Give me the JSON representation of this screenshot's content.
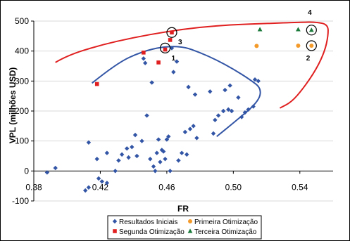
{
  "chart_data": {
    "type": "scatter",
    "xlabel": "FR",
    "ylabel": "VPL (milhões USD)",
    "xlim": [
      0.38,
      0.56
    ],
    "ylim": [
      -100,
      500
    ],
    "xticks": [
      "0.38",
      "0.42",
      "0.46",
      "0.50",
      "0.54"
    ],
    "yticks": [
      "-100",
      "0",
      "100",
      "200",
      "300",
      "400",
      "500"
    ],
    "xtick_values": [
      0.38,
      0.42,
      0.46,
      0.5,
      0.54
    ],
    "ytick_values": [
      -100,
      0,
      100,
      200,
      300,
      400,
      500
    ],
    "grid": true,
    "legend_position": "bottom",
    "series": [
      {
        "name": "Resultados Iniciais",
        "marker": "diamond",
        "color": "#3355a5",
        "points": [
          [
            0.388,
            -5
          ],
          [
            0.393,
            10
          ],
          [
            0.411,
            -65
          ],
          [
            0.413,
            -55
          ],
          [
            0.413,
            95
          ],
          [
            0.418,
            40
          ],
          [
            0.419,
            -25
          ],
          [
            0.421,
            -35
          ],
          [
            0.424,
            -40
          ],
          [
            0.424,
            60
          ],
          [
            0.429,
            0
          ],
          [
            0.431,
            35
          ],
          [
            0.433,
            55
          ],
          [
            0.436,
            75
          ],
          [
            0.437,
            45
          ],
          [
            0.439,
            80
          ],
          [
            0.441,
            120
          ],
          [
            0.442,
            50
          ],
          [
            0.445,
            100
          ],
          [
            0.446,
            375
          ],
          [
            0.447,
            360
          ],
          [
            0.448,
            185
          ],
          [
            0.45,
            40
          ],
          [
            0.451,
            295
          ],
          [
            0.452,
            15
          ],
          [
            0.453,
            0
          ],
          [
            0.454,
            60
          ],
          [
            0.455,
            105
          ],
          [
            0.456,
            30
          ],
          [
            0.457,
            70
          ],
          [
            0.458,
            65
          ],
          [
            0.459,
            40
          ],
          [
            0.46,
            105
          ],
          [
            0.461,
            115
          ],
          [
            0.462,
            0
          ],
          [
            0.463,
            410
          ],
          [
            0.464,
            330
          ],
          [
            0.466,
            365
          ],
          [
            0.467,
            35
          ],
          [
            0.469,
            60
          ],
          [
            0.471,
            130
          ],
          [
            0.472,
            55
          ],
          [
            0.473,
            280
          ],
          [
            0.474,
            140
          ],
          [
            0.476,
            150
          ],
          [
            0.477,
            255
          ],
          [
            0.478,
            110
          ],
          [
            0.486,
            265
          ],
          [
            0.488,
            125
          ],
          [
            0.489,
            170
          ],
          [
            0.491,
            185
          ],
          [
            0.494,
            200
          ],
          [
            0.495,
            270
          ],
          [
            0.497,
            205
          ],
          [
            0.498,
            285
          ],
          [
            0.499,
            200
          ],
          [
            0.503,
            245
          ],
          [
            0.505,
            180
          ],
          [
            0.507,
            195
          ],
          [
            0.509,
            205
          ],
          [
            0.512,
            215
          ],
          [
            0.513,
            305
          ],
          [
            0.515,
            300
          ]
        ]
      },
      {
        "name": "Primeira Otimização",
        "marker": "circle",
        "color": "#f39a2b",
        "points": [
          [
            0.514,
            417
          ],
          [
            0.539,
            418
          ],
          [
            0.547,
            418
          ]
        ]
      },
      {
        "name": "Segunda Otimização",
        "marker": "square",
        "color": "#e02020",
        "points": [
          [
            0.418,
            290
          ],
          [
            0.446,
            395
          ],
          [
            0.455,
            362
          ],
          [
            0.459,
            405
          ],
          [
            0.462,
            437
          ],
          [
            0.463,
            462
          ]
        ]
      },
      {
        "name": "Terceira Otimização",
        "marker": "triangle",
        "color": "#1a7a3a",
        "points": [
          [
            0.516,
            472
          ],
          [
            0.539,
            472
          ],
          [
            0.547,
            470
          ]
        ]
      }
    ],
    "curves": [
      {
        "color": "#3355a5",
        "points": [
          [
            0.415,
            293
          ],
          [
            0.43,
            360
          ],
          [
            0.445,
            398
          ],
          [
            0.458,
            415
          ],
          [
            0.47,
            415
          ],
          [
            0.48,
            395
          ],
          [
            0.49,
            370
          ],
          [
            0.5,
            340
          ],
          [
            0.51,
            305
          ],
          [
            0.517,
            275
          ],
          [
            0.515,
            230
          ],
          [
            0.5,
            160
          ],
          [
            0.49,
            115
          ]
        ]
      },
      {
        "color": "#e02020",
        "points": [
          [
            0.393,
            362
          ],
          [
            0.4,
            385
          ],
          [
            0.42,
            420
          ],
          [
            0.44,
            445
          ],
          [
            0.46,
            465
          ],
          [
            0.48,
            480
          ],
          [
            0.5,
            488
          ],
          [
            0.52,
            492
          ],
          [
            0.54,
            496
          ],
          [
            0.55,
            497
          ],
          [
            0.557,
            488
          ],
          [
            0.557,
            450
          ],
          [
            0.555,
            400
          ],
          [
            0.55,
            340
          ],
          [
            0.542,
            275
          ],
          [
            0.535,
            230
          ],
          [
            0.528,
            210
          ]
        ]
      }
    ],
    "annotations": [
      {
        "label": "1",
        "x": 0.459,
        "y": 410,
        "tx": 0.464,
        "ty": 378
      },
      {
        "label": "2",
        "x": 0.547,
        "y": 418,
        "tx": 0.545,
        "ty": 378
      },
      {
        "label": "3",
        "x": 0.463,
        "y": 462,
        "tx": 0.468,
        "ty": 432
      },
      {
        "label": "4",
        "x": 0.547,
        "y": 470,
        "tx": 0.546,
        "ty": 530
      }
    ]
  }
}
